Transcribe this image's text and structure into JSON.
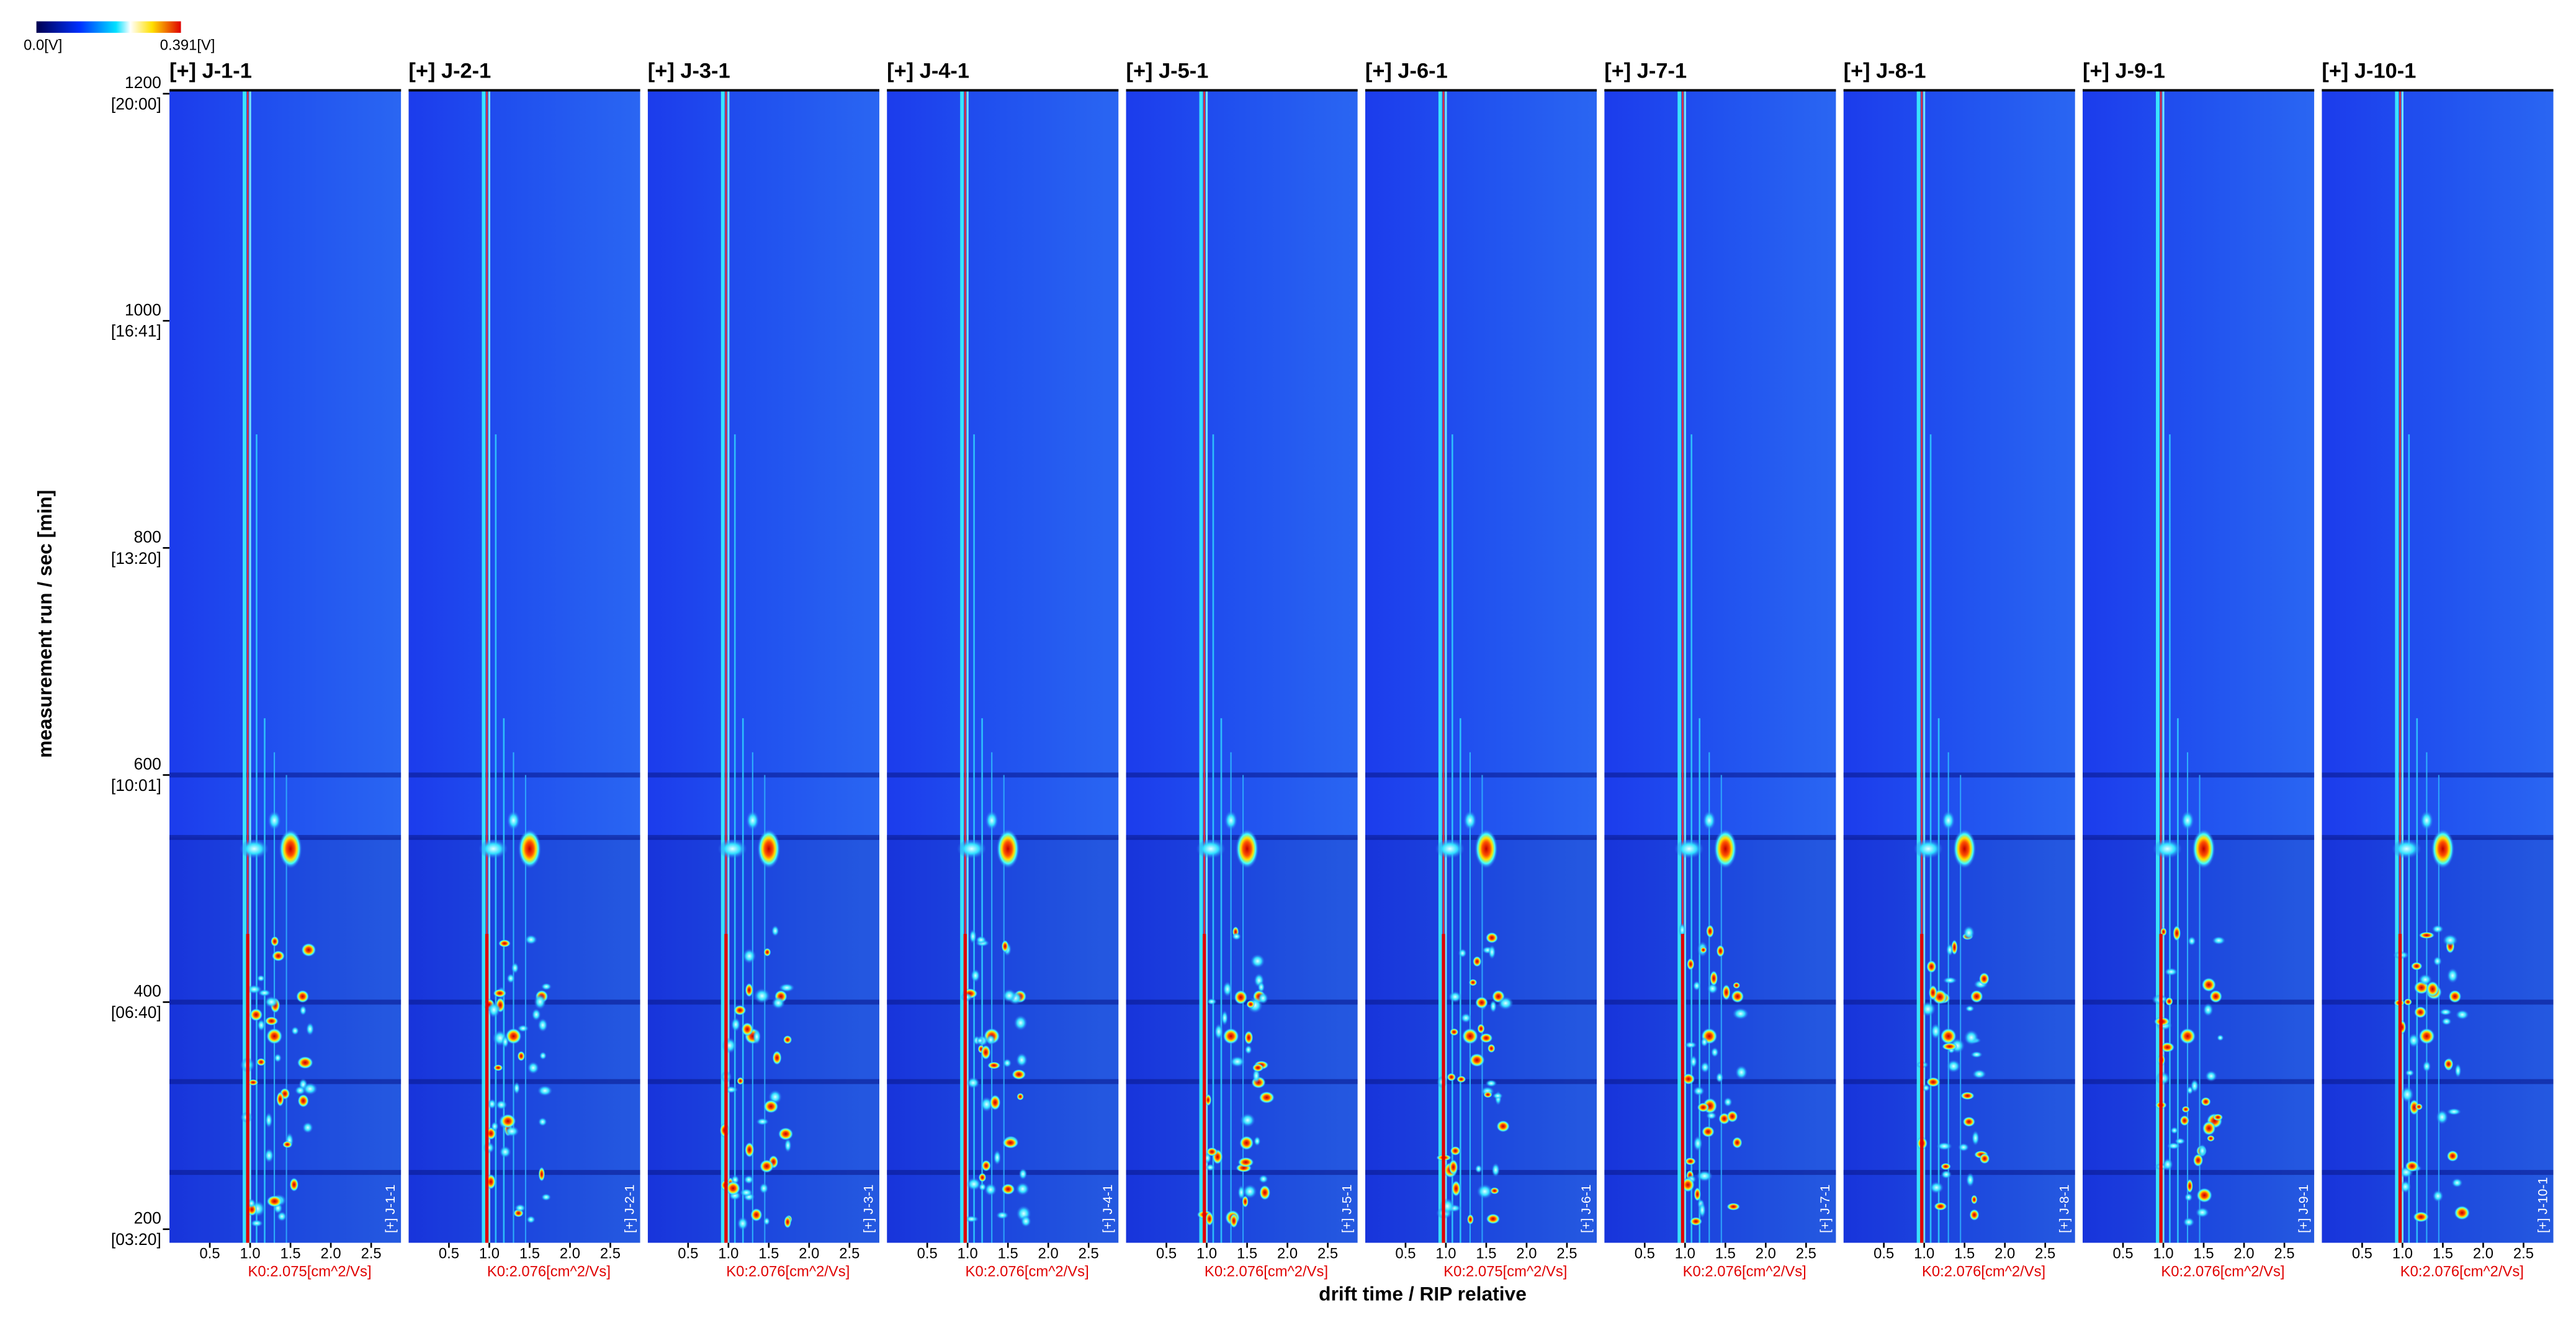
{
  "chart_data": {
    "type": "heatmap-panels",
    "ylabel": "measurement run / sec [min]",
    "xlabel": "drift time / RIP relative",
    "colorbar": {
      "lim": [
        0,
        0.391
      ],
      "ticks": [
        {
          "value": 0,
          "label": "0.0[V]"
        },
        {
          "value": 0.391,
          "label": "0.391[V]"
        }
      ]
    },
    "ylim": [
      188,
      1203
    ],
    "yticks": [
      200,
      400,
      600,
      800,
      1000,
      1200
    ],
    "yticks_time": [
      {
        "value": 200,
        "label": "[03:20]"
      },
      {
        "value": 400,
        "label": "[06:40]"
      },
      {
        "value": 600,
        "label": "[10:01]"
      },
      {
        "value": 800,
        "label": "[13:20]"
      },
      {
        "value": 1000,
        "label": "[16:41]"
      },
      {
        "value": 1200,
        "label": "[20:00]"
      }
    ],
    "xlim": [
      0,
      2.87
    ],
    "xticks": [
      0.5,
      {
        "value": 1,
        "label": "1.0"
      },
      1.5,
      {
        "value": 2,
        "label": "2.0"
      },
      2.5
    ],
    "panels": [
      {
        "title": "[+] J-1-1",
        "k0_label": "K0:2.075[cm^2/Vs]"
      },
      {
        "title": "[+] J-2-1",
        "k0_label": "K0:2.076[cm^2/Vs]"
      },
      {
        "title": "[+] J-3-1",
        "k0_label": "K0:2.076[cm^2/Vs]"
      },
      {
        "title": "[+] J-4-1",
        "k0_label": "K0:2.076[cm^2/Vs]"
      },
      {
        "title": "[+] J-5-1",
        "k0_label": "K0:2.076[cm^2/Vs]"
      },
      {
        "title": "[+] J-6-1",
        "k0_label": "K0:2.075[cm^2/Vs]"
      },
      {
        "title": "[+] J-7-1",
        "k0_label": "K0:2.076[cm^2/Vs]"
      },
      {
        "title": "[+] J-8-1",
        "k0_label": "K0:2.076[cm^2/Vs]"
      },
      {
        "title": "[+] J-9-1",
        "k0_label": "K0:2.076[cm^2/Vs]"
      },
      {
        "title": "[+] J-10-1",
        "k0_label": "K0:2.076[cm^2/Vs]"
      }
    ]
  }
}
